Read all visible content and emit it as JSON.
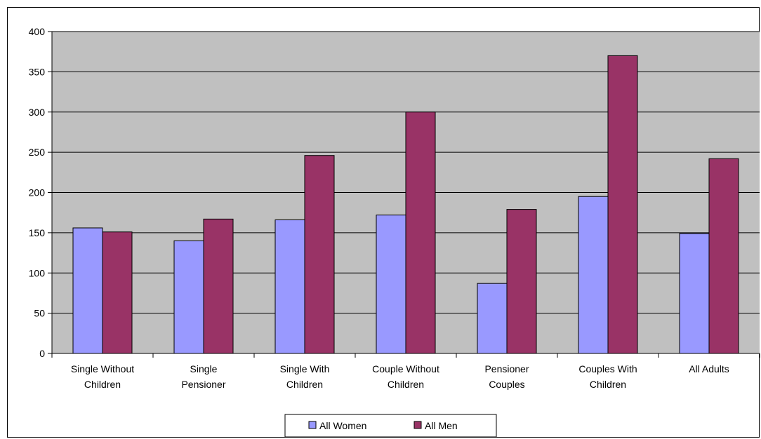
{
  "chart_data": {
    "type": "bar",
    "categories": [
      [
        "Single Without",
        "Children"
      ],
      [
        "Single",
        "Pensioner"
      ],
      [
        "Single With",
        "Children"
      ],
      [
        "Couple Without",
        "Children"
      ],
      [
        "Pensioner",
        "Couples"
      ],
      [
        "Couples With",
        "Children"
      ],
      [
        "All Adults"
      ]
    ],
    "series": [
      {
        "name": "All Women",
        "color": "#9999ff",
        "values": [
          156,
          140,
          166,
          172,
          87,
          195,
          149
        ]
      },
      {
        "name": "All Men",
        "color": "#993366",
        "values": [
          151,
          167,
          246,
          300,
          179,
          370,
          242
        ]
      }
    ],
    "ylim": [
      0,
      400
    ],
    "yticks": [
      "0",
      "50",
      "100",
      "150",
      "200",
      "250",
      "300",
      "350",
      "400"
    ],
    "grid": true,
    "plot_background": "#c0c0c0",
    "legend_position": "bottom"
  }
}
